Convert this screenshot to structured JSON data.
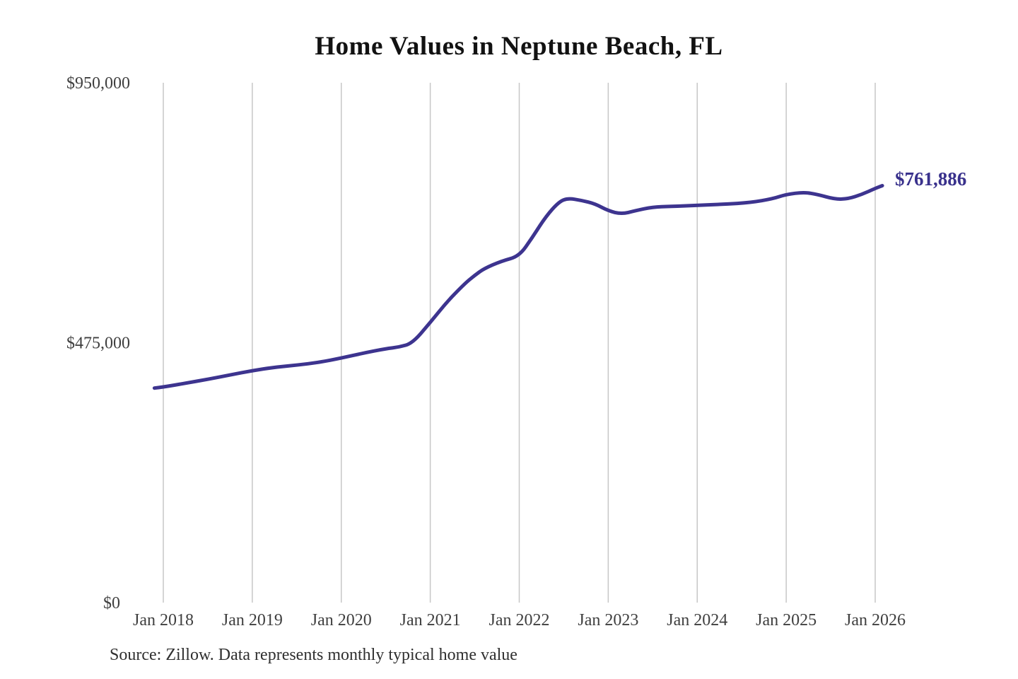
{
  "title": "Home Values in Neptune Beach, FL",
  "source_note": "Source: Zillow. Data represents monthly typical home value",
  "colors": {
    "line": "#3d348f",
    "end_label": "#39318c",
    "grid": "#c7c7c7",
    "axis_label": "#3f3f3f",
    "title": "#121212",
    "source": "#2f2f2f",
    "background": "#ffffff"
  },
  "chart_data": {
    "type": "line",
    "title": "Home Values in Neptune Beach, FL",
    "xlabel": "",
    "ylabel": "",
    "ylim": [
      0,
      950000
    ],
    "grid": "vertical-gridlines-only",
    "legend": "none",
    "x_ticks": [
      {
        "year": 2018,
        "label": "Jan 2018"
      },
      {
        "year": 2019,
        "label": "Jan 2019"
      },
      {
        "year": 2020,
        "label": "Jan 2020"
      },
      {
        "year": 2021,
        "label": "Jan 2021"
      },
      {
        "year": 2022,
        "label": "Jan 2022"
      },
      {
        "year": 2023,
        "label": "Jan 2023"
      },
      {
        "year": 2024,
        "label": "Jan 2024"
      },
      {
        "year": 2025,
        "label": "Jan 2025"
      },
      {
        "year": 2026,
        "label": "Jan 2026"
      }
    ],
    "y_ticks": [
      {
        "value": 950000,
        "label": "$950,000"
      },
      {
        "value": 475000,
        "label": "$475,000"
      },
      {
        "value": 0,
        "label": "$0"
      }
    ],
    "end_label": "$761,886",
    "end_value": 761886,
    "series": [
      {
        "name": "Monthly typical home value",
        "points": [
          [
            2017.9,
            392000
          ],
          [
            2018.0,
            394000
          ],
          [
            2018.25,
            401000
          ],
          [
            2018.5,
            408000
          ],
          [
            2018.75,
            416000
          ],
          [
            2019.0,
            424000
          ],
          [
            2019.25,
            430000
          ],
          [
            2019.5,
            434000
          ],
          [
            2019.75,
            439000
          ],
          [
            2020.0,
            447000
          ],
          [
            2020.25,
            456000
          ],
          [
            2020.5,
            464000
          ],
          [
            2020.65,
            467000
          ],
          [
            2020.8,
            474000
          ],
          [
            2021.0,
            512000
          ],
          [
            2021.2,
            552000
          ],
          [
            2021.4,
            585000
          ],
          [
            2021.5,
            598000
          ],
          [
            2021.6,
            610000
          ],
          [
            2021.8,
            624000
          ],
          [
            2022.0,
            633000
          ],
          [
            2022.15,
            668000
          ],
          [
            2022.3,
            706000
          ],
          [
            2022.45,
            733000
          ],
          [
            2022.55,
            739000
          ],
          [
            2022.7,
            735000
          ],
          [
            2022.85,
            729000
          ],
          [
            2023.0,
            716000
          ],
          [
            2023.15,
            710000
          ],
          [
            2023.3,
            716000
          ],
          [
            2023.5,
            723000
          ],
          [
            2023.7,
            724000
          ],
          [
            2024.0,
            726000
          ],
          [
            2024.3,
            728000
          ],
          [
            2024.6,
            731000
          ],
          [
            2024.85,
            738000
          ],
          [
            2025.0,
            746000
          ],
          [
            2025.2,
            750000
          ],
          [
            2025.35,
            746000
          ],
          [
            2025.55,
            737000
          ],
          [
            2025.7,
            738000
          ],
          [
            2025.85,
            746000
          ],
          [
            2026.0,
            757000
          ],
          [
            2026.08,
            761886
          ]
        ]
      }
    ]
  }
}
